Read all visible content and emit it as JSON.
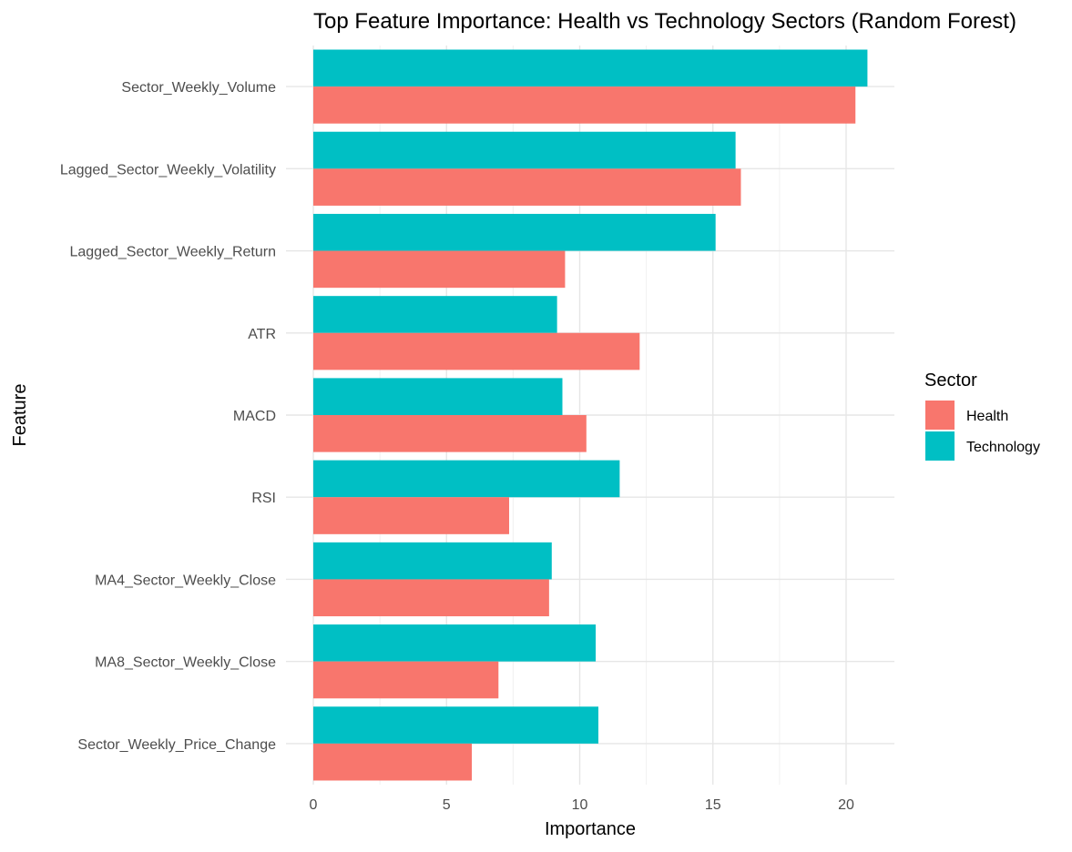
{
  "chart_data": {
    "type": "bar",
    "orientation": "horizontal",
    "title": "Top Feature Importance: Health vs Technology Sectors (Random Forest)",
    "xlabel": "Importance",
    "ylabel": "Feature",
    "xlim": [
      0,
      21.8
    ],
    "xticks": [
      0,
      5,
      10,
      15,
      20
    ],
    "grid": true,
    "legend": {
      "title": "Sector",
      "position": "right"
    },
    "categories": [
      "Sector_Weekly_Volume",
      "Lagged_Sector_Weekly_Volatility",
      "Lagged_Sector_Weekly_Return",
      "ATR",
      "MACD",
      "RSI",
      "MA4_Sector_Weekly_Close",
      "MA8_Sector_Weekly_Close",
      "Sector_Weekly_Price_Change"
    ],
    "series": [
      {
        "name": "Health",
        "color": "#F8766D",
        "values": [
          20.35,
          16.05,
          9.45,
          12.25,
          10.25,
          7.35,
          8.85,
          6.95,
          5.95
        ]
      },
      {
        "name": "Technology",
        "color": "#00BFC4",
        "values": [
          20.8,
          15.85,
          15.1,
          9.15,
          9.35,
          11.5,
          8.95,
          10.6,
          10.7
        ]
      }
    ]
  }
}
